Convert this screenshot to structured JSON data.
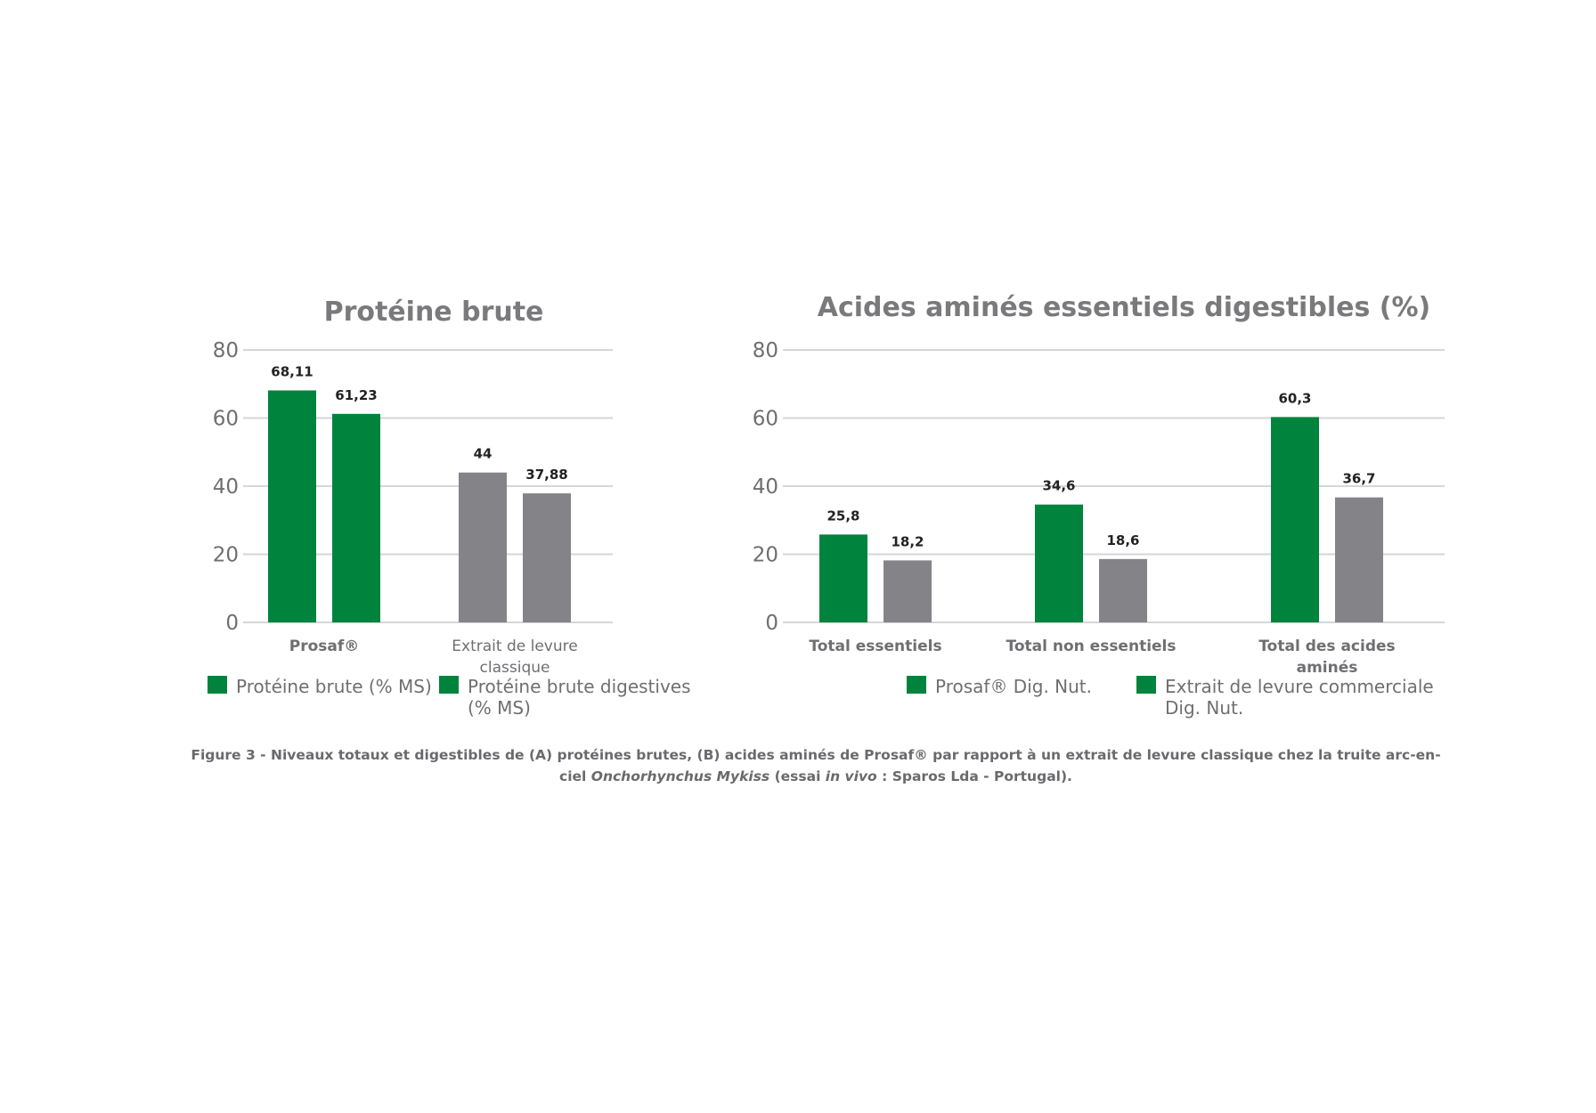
{
  "colors": {
    "prosaf": "#00843d",
    "classic": "#848488",
    "grid": "#d6d6d8",
    "text": "#6f6f72"
  },
  "chart_data": [
    {
      "type": "bar",
      "title": "Protéine brute",
      "ylim": [
        0,
        80
      ],
      "yticks": [
        0,
        20,
        40,
        60,
        80
      ],
      "categories": [
        "Prosaf®",
        "Extrait de levure classique"
      ],
      "category_lines": [
        [
          "Prosaf®"
        ],
        [
          "Extrait de levure",
          "classique"
        ]
      ],
      "category_bold": [
        true,
        false
      ],
      "value_labels": [
        [
          "68,11",
          "61,23"
        ],
        [
          "44",
          "37,88"
        ]
      ],
      "bars": [
        {
          "values": [
            68.11,
            61.23
          ],
          "colors": [
            "#00843d",
            "#00843d"
          ]
        },
        {
          "values": [
            44,
            37.88
          ],
          "colors": [
            "#848488",
            "#848488"
          ]
        }
      ],
      "legend": [
        {
          "label_lines": [
            "Protéine brute (% MS)"
          ],
          "color": "#00843d"
        },
        {
          "label_lines": [
            "Protéine brute digestives",
            "(% MS)"
          ],
          "color": "#00843d"
        }
      ],
      "grid": true
    },
    {
      "type": "bar",
      "title": "Acides aminés essentiels digestibles (%)",
      "ylim": [
        0,
        80
      ],
      "yticks": [
        0,
        20,
        40,
        60,
        80
      ],
      "categories": [
        "Total essentiels",
        "Total non essentiels",
        "Total des acides aminés"
      ],
      "category_lines": [
        [
          "Total essentiels"
        ],
        [
          "Total non essentiels"
        ],
        [
          "Total des acides",
          "aminés"
        ]
      ],
      "category_bold": [
        true,
        true,
        true
      ],
      "value_labels": [
        [
          "25,8",
          "18,2"
        ],
        [
          "34,6",
          "18,6"
        ],
        [
          "60,3",
          "36,7"
        ]
      ],
      "series": [
        {
          "name": "Prosaf® Dig. Nut.",
          "values": [
            25.8,
            34.6,
            60.3
          ],
          "color": "#00843d"
        },
        {
          "name": "Extrait de levure commerciale Dig. Nut.",
          "values": [
            18.2,
            18.6,
            36.7
          ],
          "color": "#848488"
        }
      ],
      "legend": [
        {
          "label_lines": [
            "Prosaf® Dig. Nut."
          ],
          "color": "#00843d"
        },
        {
          "label_lines": [
            "Extrait de levure commerciale",
            "Dig. Nut."
          ],
          "color": "#00843d"
        }
      ],
      "grid": true
    }
  ],
  "caption": {
    "line1": "Figure 3 - Niveaux totaux et digestibles de (A) protéines brutes, (B) acides aminés de Prosaf® par rapport à un extrait de levure classique chez la truite arc-en-",
    "line2_a": "ciel ",
    "line2_b": "Onchorhynchus Mykiss",
    "line2_c": " (essai ",
    "line2_d": "in vivo",
    "line2_e": " : Sparos Lda - Portugal)."
  }
}
